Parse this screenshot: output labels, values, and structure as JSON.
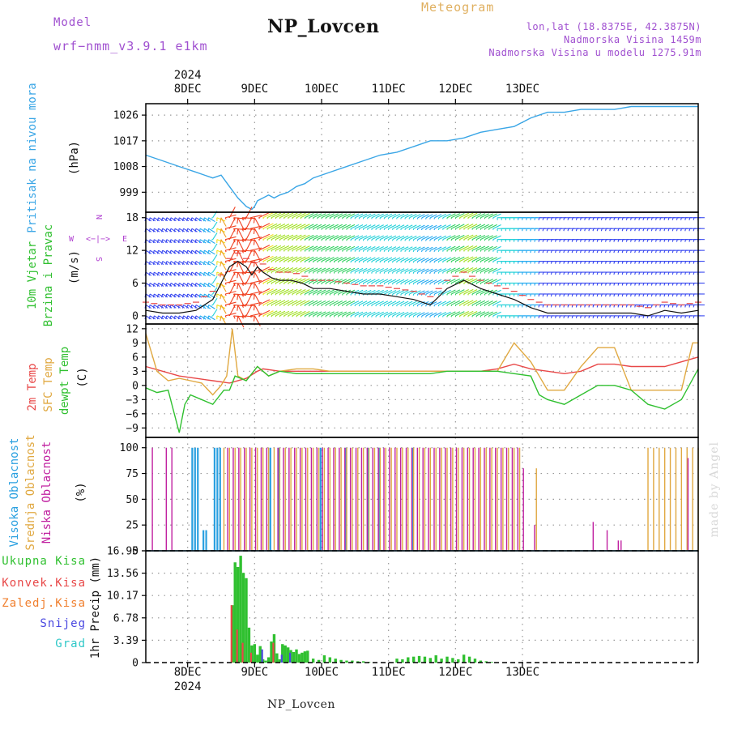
{
  "header": {
    "title": "NP_Lovcen",
    "meteogram_label": "Meteogram",
    "model_label": "Model",
    "model_value": "wrf−nmm_v3.9.1 e1km",
    "lonlat": "lon,lat (18.8375E, 42.3875N)",
    "elevation": "Nadmorska Visina 1459m",
    "model_elevation": "Nadmorska Visina u modelu 1275.91m"
  },
  "footer": {
    "station": "NP_Lovcen"
  },
  "watermark": "made by Angel",
  "colors": {
    "pressure": "#3aa6e6",
    "temp2m": "#e84848",
    "sfc_temp": "#e0a840",
    "dewpt": "#30c030",
    "high_cloud": "#2aa0e0",
    "mid_cloud": "#e0a840",
    "low_cloud": "#c020a0",
    "total_precip": "#30c030",
    "conv_precip": "#e84848",
    "frz_precip": "#f08030",
    "snow": "#4a48e0",
    "hail": "#30c8c8",
    "wind_label": "#30c030",
    "wind_compass": "#b040d0"
  },
  "time_axis": {
    "year": "2024",
    "days": [
      "8DEC",
      "9DEC",
      "10DEC",
      "11DEC",
      "12DEC",
      "13DEC"
    ]
  },
  "panels": {
    "pressure": {
      "label": "Pritisak na nivou mora",
      "unit": "(hPa)",
      "ticks": [
        "1026",
        "1017",
        "1008",
        "999"
      ]
    },
    "wind": {
      "label1": "10m Vjetar",
      "label2": "Brzina i Pravac",
      "unit": "(m/s)",
      "ticks": [
        "18",
        "12",
        "6",
        "0"
      ],
      "compass": {
        "n": "N",
        "s": "S",
        "w": "W",
        "e": "E",
        "arrows": "<−|−>"
      }
    },
    "temp": {
      "label_2m": "2m Temp",
      "label_sfc": "SFC Temp",
      "label_dew": "dewpt Temp",
      "unit": "(C)",
      "ticks": [
        "12",
        "9",
        "6",
        "3",
        "0",
        "−3",
        "−6",
        "−9"
      ]
    },
    "cloud": {
      "label_high": "Visoka Oblacnost",
      "label_mid": "Srednja Oblacnost",
      "label_low": "Niska Oblacnost",
      "unit": "(%)",
      "ticks": [
        "100",
        "75",
        "50",
        "25",
        "0"
      ]
    },
    "precip": {
      "unit": "1hr Precip (mm)",
      "ticks": [
        "16.95",
        "13.56",
        "10.17",
        "6.78",
        "3.39",
        "0"
      ],
      "legend": [
        "Ukupna Kisa",
        "Konvek.Kisa",
        "Zaledj.Kisa",
        "Snijeg",
        "Grad"
      ]
    }
  },
  "chart_data": [
    {
      "type": "line",
      "title": "Pritisak na nivou mora",
      "xlabel": "",
      "ylabel": "(hPa)",
      "x_unit": "hours since 7DEC 12UTC (approx.)",
      "ylim": [
        992,
        1030
      ],
      "series": [
        {
          "name": "Pritisak na nivou mora",
          "x": [
            0,
            6,
            12,
            18,
            24,
            27,
            30,
            33,
            36,
            38,
            39,
            40,
            42,
            44,
            46,
            48,
            51,
            54,
            57,
            60,
            66,
            72,
            78,
            84,
            90,
            96,
            102,
            108,
            114,
            120,
            126,
            132,
            138,
            144,
            150,
            156,
            162,
            168,
            174,
            180,
            186,
            192,
            198
          ],
          "y": [
            1012,
            1010,
            1008,
            1006,
            1004,
            1005,
            1001,
            997,
            994,
            993,
            994,
            996,
            997,
            998,
            997,
            998,
            999,
            1001,
            1002,
            1004,
            1006,
            1008,
            1010,
            1012,
            1013,
            1015,
            1017,
            1017,
            1018,
            1020,
            1021,
            1022,
            1025,
            1027,
            1027,
            1028,
            1028,
            1028,
            1029,
            1029,
            1029,
            1029,
            1029
          ]
        }
      ]
    },
    {
      "type": "line",
      "title": "10m Vjetar",
      "xlabel": "",
      "ylabel": "(m/s)",
      "x_unit": "hours since 7DEC 12UTC (approx.)",
      "ylim": [
        -1.5,
        19
      ],
      "series": [
        {
          "name": "Brzina i Pravac",
          "x": [
            0,
            6,
            12,
            18,
            24,
            27,
            30,
            33,
            36,
            38,
            40,
            42,
            45,
            48,
            52,
            56,
            60,
            66,
            72,
            78,
            84,
            90,
            96,
            102,
            108,
            114,
            120,
            126,
            132,
            138,
            144,
            150,
            156,
            162,
            168,
            174,
            180,
            186,
            192,
            198
          ],
          "y": [
            1.0,
            0.5,
            0.5,
            1.0,
            3.0,
            6.0,
            9.0,
            10.0,
            9.0,
            7.5,
            9.0,
            8.0,
            7.0,
            6.5,
            6.5,
            6.0,
            5.0,
            5.0,
            4.5,
            4.0,
            4.0,
            3.5,
            3.0,
            2.0,
            5.0,
            6.5,
            5.0,
            4.0,
            3.0,
            1.5,
            0.5,
            0.5,
            0.5,
            0.5,
            0.5,
            0.5,
            0.0,
            1.0,
            0.5,
            1.0
          ]
        }
      ]
    },
    {
      "type": "line",
      "title": "",
      "xlabel": "",
      "ylabel": "(C)",
      "x_unit": "hours since 7DEC 12UTC (approx.)",
      "ylim": [
        -11,
        13
      ],
      "series": [
        {
          "name": "2m Temp",
          "x": [
            0,
            6,
            12,
            18,
            24,
            30,
            36,
            40,
            42,
            48,
            54,
            60,
            66,
            72,
            78,
            84,
            90,
            96,
            102,
            108,
            114,
            120,
            126,
            132,
            138,
            144,
            150,
            156,
            162,
            168,
            174,
            180,
            186,
            192,
            198
          ],
          "y": [
            4.0,
            3.0,
            2.0,
            1.5,
            1.0,
            0.5,
            1.5,
            3.0,
            3.5,
            3.0,
            3.0,
            3.0,
            3.0,
            3.0,
            3.0,
            3.0,
            3.0,
            3.0,
            3.0,
            3.0,
            3.0,
            3.0,
            3.5,
            4.5,
            3.5,
            3.0,
            2.5,
            3.0,
            4.5,
            4.5,
            4.0,
            4.0,
            4.0,
            5.0,
            6.0
          ]
        },
        {
          "name": "SFC Temp",
          "x": [
            0,
            4,
            8,
            12,
            16,
            20,
            24,
            27,
            29,
            31,
            33,
            36,
            40,
            44,
            48,
            54,
            60,
            66,
            72,
            78,
            84,
            90,
            96,
            102,
            108,
            114,
            120,
            126,
            132,
            138,
            141,
            144,
            150,
            156,
            162,
            168,
            174,
            180,
            186,
            192,
            196,
            198
          ],
          "y": [
            11.0,
            3.0,
            1.0,
            1.5,
            1.0,
            0.5,
            -2.0,
            0.0,
            2.0,
            12.0,
            2.0,
            1.0,
            4.0,
            2.0,
            3.0,
            3.5,
            3.5,
            3.0,
            3.0,
            3.0,
            3.0,
            3.0,
            3.0,
            3.0,
            3.0,
            3.0,
            3.0,
            3.0,
            9.0,
            5.0,
            2.0,
            -1.0,
            -1.0,
            4.0,
            8.0,
            8.0,
            -1.0,
            -1.0,
            -1.0,
            -1.0,
            9.0,
            9.0
          ]
        },
        {
          "name": "dewpt Temp",
          "x": [
            0,
            4,
            8,
            12,
            14,
            16,
            20,
            24,
            28,
            30,
            32,
            36,
            40,
            44,
            48,
            54,
            60,
            66,
            72,
            78,
            84,
            90,
            96,
            102,
            108,
            114,
            120,
            126,
            132,
            138,
            141,
            144,
            150,
            156,
            162,
            168,
            174,
            180,
            186,
            192,
            198
          ],
          "y": [
            -0.5,
            -1.5,
            -1.0,
            -10.0,
            -4.0,
            -2.0,
            -3.0,
            -4.0,
            -1.0,
            -1.0,
            2.0,
            1.0,
            4.0,
            2.0,
            3.0,
            2.5,
            2.5,
            2.5,
            2.5,
            2.5,
            2.5,
            2.5,
            2.5,
            2.5,
            3.0,
            3.0,
            3.0,
            3.0,
            2.5,
            2.0,
            -2.0,
            -3.0,
            -4.0,
            -2.0,
            0.0,
            0.0,
            -1.0,
            -4.0,
            -5.0,
            -3.0,
            3.5
          ]
        }
      ]
    },
    {
      "type": "bar",
      "title": "",
      "xlabel": "",
      "ylabel": "(%)",
      "x_unit": "hours since 7DEC 12UTC (approx.)",
      "ylim": [
        0,
        100
      ],
      "series": [
        {
          "name": "Visoka Oblacnost",
          "x": [
            17,
            18,
            19,
            21,
            22,
            25,
            26,
            27,
            45,
            48,
            63,
            72,
            80,
            84,
            96
          ],
          "values": [
            100,
            100,
            100,
            20,
            20,
            100,
            100,
            100,
            100,
            100,
            100,
            100,
            100,
            100,
            100
          ]
        },
        {
          "name": "Srednja Oblacnost",
          "x": [
            28,
            30,
            32,
            34,
            36,
            38,
            40,
            42,
            44,
            46,
            48,
            50,
            52,
            54,
            56,
            58,
            60,
            62,
            64,
            66,
            68,
            70,
            72,
            74,
            76,
            78,
            80,
            82,
            84,
            86,
            88,
            90,
            92,
            94,
            96,
            98,
            100,
            102,
            104,
            106,
            108,
            110,
            112,
            114,
            116,
            118,
            120,
            122,
            124,
            126,
            128,
            130,
            132,
            134,
            140,
            180,
            182,
            184,
            186,
            188,
            190,
            192,
            194,
            196,
            198
          ],
          "values": [
            100,
            100,
            100,
            100,
            100,
            100,
            100,
            100,
            100,
            100,
            100,
            100,
            100,
            100,
            100,
            100,
            100,
            100,
            100,
            100,
            100,
            100,
            100,
            100,
            100,
            100,
            100,
            100,
            100,
            100,
            100,
            100,
            100,
            100,
            100,
            100,
            100,
            100,
            100,
            100,
            100,
            100,
            100,
            100,
            100,
            100,
            100,
            100,
            100,
            100,
            100,
            100,
            100,
            100,
            80,
            100,
            100,
            100,
            100,
            100,
            100,
            100,
            100,
            100,
            100
          ]
        },
        {
          "name": "Niska Oblacnost",
          "x": [
            2,
            7,
            9,
            29,
            31,
            33,
            35,
            37,
            39,
            41,
            43,
            47,
            49,
            51,
            53,
            55,
            57,
            59,
            61,
            63,
            65,
            67,
            69,
            71,
            73,
            75,
            77,
            79,
            81,
            83,
            85,
            87,
            89,
            91,
            93,
            95,
            97,
            99,
            101,
            103,
            105,
            107,
            109,
            111,
            113,
            115,
            117,
            119,
            121,
            123,
            125,
            127,
            129,
            131,
            133,
            135,
            139,
            160,
            165,
            169,
            170,
            194
          ],
          "values": [
            100,
            100,
            100,
            100,
            100,
            100,
            100,
            100,
            100,
            100,
            100,
            100,
            100,
            100,
            100,
            100,
            100,
            100,
            100,
            100,
            100,
            100,
            100,
            100,
            100,
            100,
            100,
            100,
            100,
            100,
            100,
            100,
            100,
            100,
            100,
            100,
            100,
            100,
            100,
            100,
            100,
            100,
            100,
            100,
            100,
            100,
            100,
            100,
            100,
            100,
            100,
            100,
            100,
            100,
            100,
            80,
            25,
            28,
            20,
            10,
            10,
            90
          ]
        }
      ]
    },
    {
      "type": "bar",
      "title": "",
      "xlabel": "",
      "ylabel": "1hr Precip (mm)",
      "x_unit": "hours since 7DEC 12UTC (approx.)",
      "ylim": [
        0,
        16.95
      ],
      "series": [
        {
          "name": "Ukupna Kisa",
          "x": [
            31,
            32,
            33,
            34,
            35,
            36,
            37,
            38,
            39,
            40,
            41,
            42,
            43,
            44,
            45,
            46,
            47,
            48,
            49,
            50,
            51,
            52,
            53,
            54,
            55,
            56,
            57,
            58,
            60,
            62,
            64,
            66,
            68,
            70,
            72,
            74,
            76,
            78,
            80,
            90,
            92,
            94,
            96,
            98,
            100,
            102,
            104,
            106,
            108,
            110,
            112,
            114,
            116,
            118,
            120,
            122,
            124
          ],
          "values": [
            8.7,
            15.2,
            14.5,
            16.2,
            13.6,
            12.8,
            5.3,
            2.6,
            2.8,
            1.2,
            2.5,
            0.5,
            0.3,
            0.8,
            3.2,
            4.3,
            1.4,
            0.5,
            2.8,
            2.6,
            2.3,
            1.9,
            1.6,
            2.0,
            1.3,
            1.5,
            1.7,
            1.8,
            0.6,
            0.4,
            1.1,
            0.8,
            0.6,
            0.4,
            0.3,
            0.3,
            0.2,
            0.2,
            0.1,
            0.6,
            0.5,
            0.8,
            0.9,
            1.0,
            0.9,
            0.7,
            1.1,
            0.6,
            0.9,
            0.7,
            0.5,
            1.2,
            0.9,
            0.6,
            0.3,
            0.2,
            0.1
          ]
        },
        {
          "name": "Konvek.Kisa",
          "x": [
            31,
            33,
            35,
            38,
            46
          ],
          "values": [
            8.7,
            5.0,
            3.0,
            1.5,
            3.0
          ]
        },
        {
          "name": "Zaledj.Kisa",
          "x": [],
          "values": []
        },
        {
          "name": "Snijeg",
          "x": [
            42,
            49,
            52
          ],
          "values": [
            2.0,
            1.2,
            1.5
          ]
        },
        {
          "name": "Grad",
          "x": [],
          "values": []
        }
      ]
    }
  ]
}
